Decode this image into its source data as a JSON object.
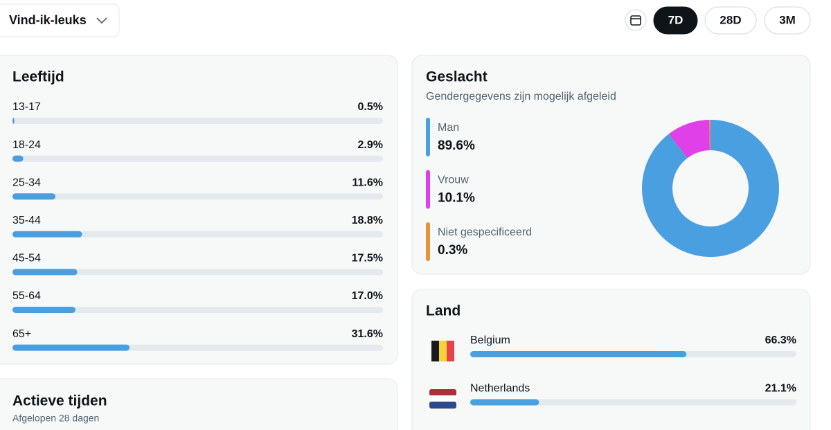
{
  "header": {
    "metric": "Vind-ik-leuks",
    "ranges": [
      "7D",
      "28D",
      "3M"
    ],
    "active_range": "7D"
  },
  "age": {
    "type": "bar",
    "title": "Leeftijd",
    "categories": [
      "13-17",
      "18-24",
      "25-34",
      "35-44",
      "45-54",
      "55-64",
      "65+"
    ],
    "values": [
      0.5,
      2.9,
      11.6,
      18.8,
      17.5,
      17.0,
      31.6
    ],
    "value_labels": [
      "0.5%",
      "2.9%",
      "11.6%",
      "18.8%",
      "17.5%",
      "17.0%",
      "31.6%"
    ],
    "xlim": [
      0,
      100
    ],
    "color": "#4a9fe0"
  },
  "gender": {
    "type": "donut",
    "title": "Geslacht",
    "subtitle": "Gendergegevens zijn mogelijk afgeleid",
    "categories": [
      "Man",
      "Vrouw",
      "Niet gespecificeerd"
    ],
    "values": [
      89.6,
      10.1,
      0.3
    ],
    "value_labels": [
      "89.6%",
      "10.1%",
      "0.3%"
    ],
    "colors": [
      "#4a9fe0",
      "#e040e8",
      "#e8913a"
    ]
  },
  "country": {
    "type": "bar",
    "title": "Land",
    "categories": [
      "Belgium",
      "Netherlands"
    ],
    "values": [
      66.3,
      21.1
    ],
    "value_labels": [
      "66.3%",
      "21.1%"
    ],
    "xlim": [
      0,
      100
    ],
    "color": "#4a9fe0"
  },
  "active_times": {
    "title": "Actieve tijden",
    "subtitle": "Afgelopen 28 dagen"
  }
}
